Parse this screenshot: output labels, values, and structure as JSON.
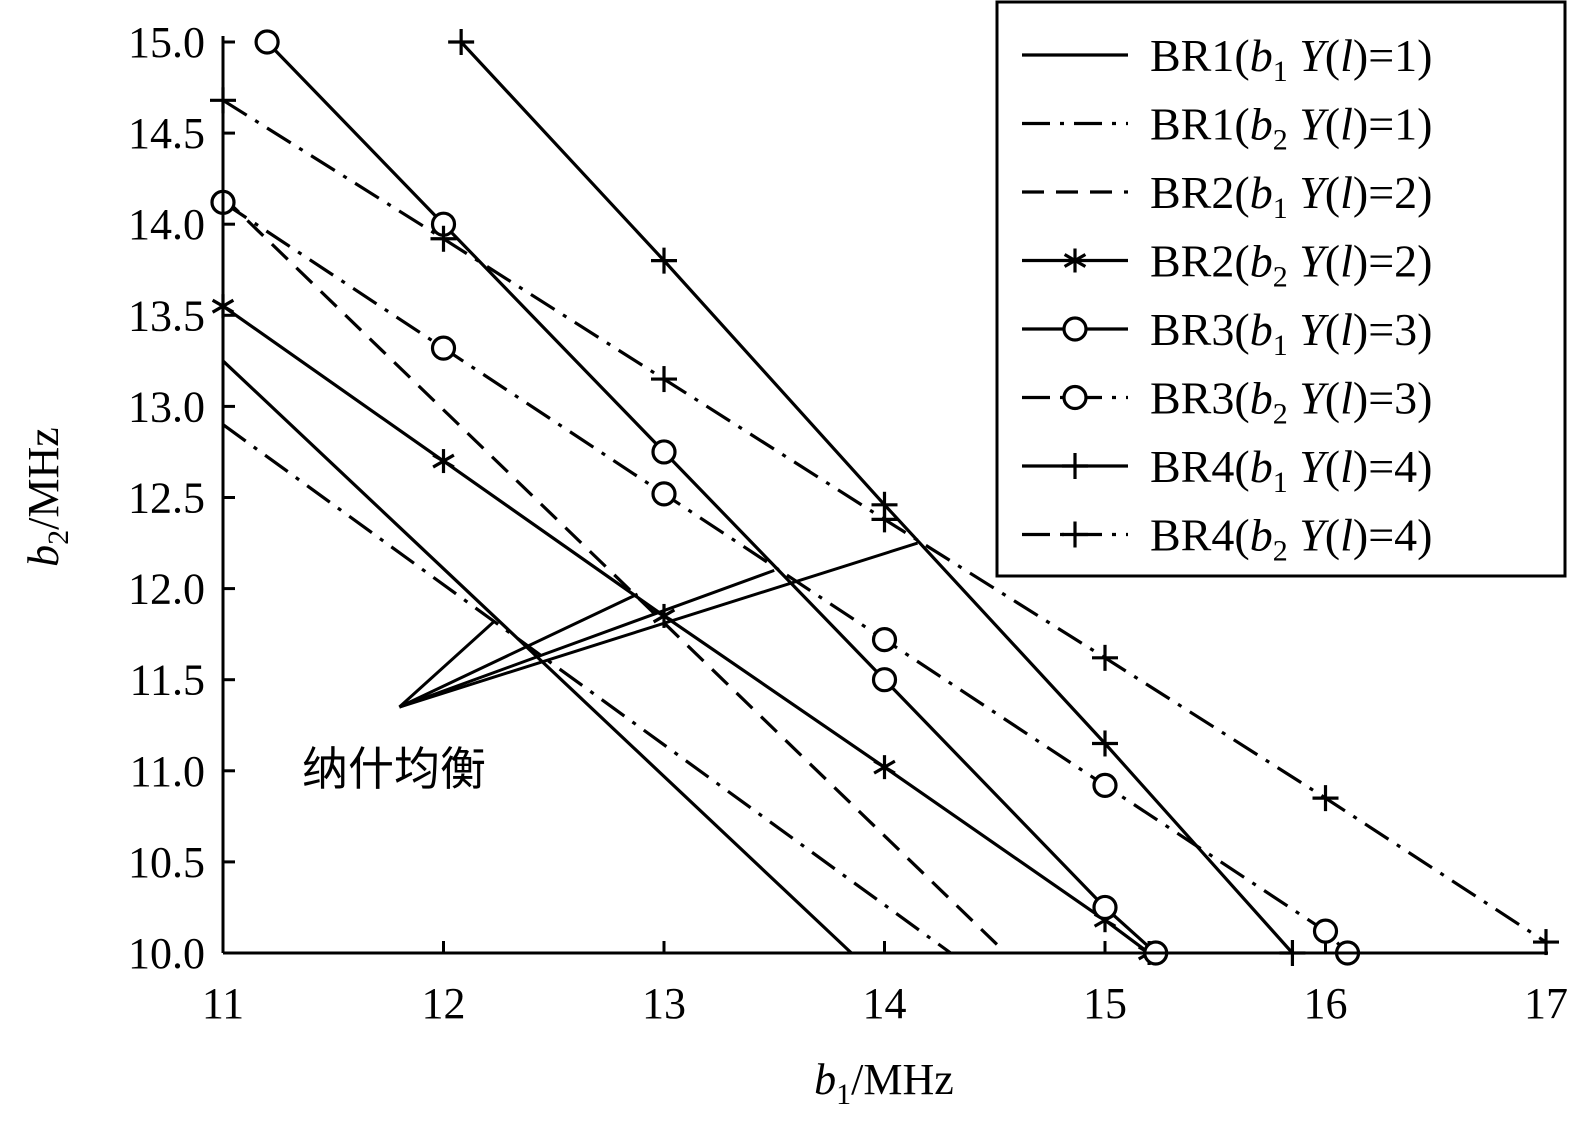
{
  "chart_data": {
    "type": "line",
    "xlabel": "b1/MHz",
    "ylabel": "b2/MHz",
    "xlim": [
      11,
      17
    ],
    "ylim": [
      10.0,
      15.0
    ],
    "x_ticks": [
      "11",
      "12",
      "13",
      "14",
      "15",
      "16",
      "17"
    ],
    "y_ticks": [
      "10.0",
      "10.5",
      "11.0",
      "11.5",
      "12.0",
      "12.5",
      "13.0",
      "13.5",
      "14.0",
      "14.5",
      "15.0"
    ],
    "grid": false,
    "legend_position": "top-right",
    "series": [
      {
        "name": "BR1(b1 Y(l)=1)",
        "style": "solid",
        "marker": "none",
        "points": [
          [
            11.0,
            13.25
          ],
          [
            13.85,
            10.0
          ]
        ]
      },
      {
        "name": "BR1(b2 Y(l)=1)",
        "style": "dashdot",
        "marker": "none",
        "points": [
          [
            11.0,
            12.9
          ],
          [
            14.3,
            10.0
          ]
        ]
      },
      {
        "name": "BR2(b1 Y(l)=2)",
        "style": "dashed",
        "marker": "none",
        "points": [
          [
            11.0,
            14.15
          ],
          [
            14.55,
            10.0
          ]
        ]
      },
      {
        "name": "BR2(b2 Y(l)=2)",
        "style": "solid",
        "marker": "asterisk",
        "points": [
          [
            11.0,
            13.55
          ],
          [
            12.0,
            12.7
          ],
          [
            13.0,
            11.85
          ],
          [
            14.0,
            11.02
          ],
          [
            15.0,
            10.18
          ],
          [
            15.2,
            10.0
          ]
        ]
      },
      {
        "name": "BR3(b1 Y(l)=3)",
        "style": "solid",
        "marker": "circle",
        "points": [
          [
            11.2,
            15.0
          ],
          [
            12.0,
            14.0
          ],
          [
            13.0,
            12.75
          ],
          [
            14.0,
            11.5
          ],
          [
            15.0,
            10.25
          ],
          [
            15.23,
            10.0
          ]
        ]
      },
      {
        "name": "BR3(b2 Y(l)=3)",
        "style": "dashdot",
        "marker": "circle",
        "points": [
          [
            11.0,
            14.12
          ],
          [
            12.0,
            13.32
          ],
          [
            13.0,
            12.52
          ],
          [
            14.0,
            11.72
          ],
          [
            15.0,
            10.92
          ],
          [
            16.0,
            10.12
          ],
          [
            16.1,
            10.0
          ]
        ]
      },
      {
        "name": "BR4(b1 Y(l)=4)",
        "style": "solid",
        "marker": "plus",
        "points": [
          [
            12.08,
            15.0
          ],
          [
            13.0,
            13.8
          ],
          [
            14.0,
            12.46
          ],
          [
            15.0,
            11.15
          ],
          [
            15.85,
            10.0
          ]
        ]
      },
      {
        "name": "BR4(b2 Y(l)=4)",
        "style": "dashdot",
        "marker": "plus",
        "points": [
          [
            11.0,
            14.68
          ],
          [
            12.0,
            13.92
          ],
          [
            13.0,
            13.15
          ],
          [
            14.0,
            12.38
          ],
          [
            15.0,
            11.62
          ],
          [
            16.0,
            10.85
          ],
          [
            17.0,
            10.06
          ]
        ]
      }
    ],
    "nash_equilibria": [
      [
        12.23,
        11.82
      ],
      [
        12.88,
        11.97
      ],
      [
        13.5,
        12.1
      ],
      [
        14.15,
        12.25
      ]
    ],
    "annotation": {
      "text": "纳什均衡",
      "pointer_origin": [
        11.8,
        11.35
      ]
    }
  }
}
